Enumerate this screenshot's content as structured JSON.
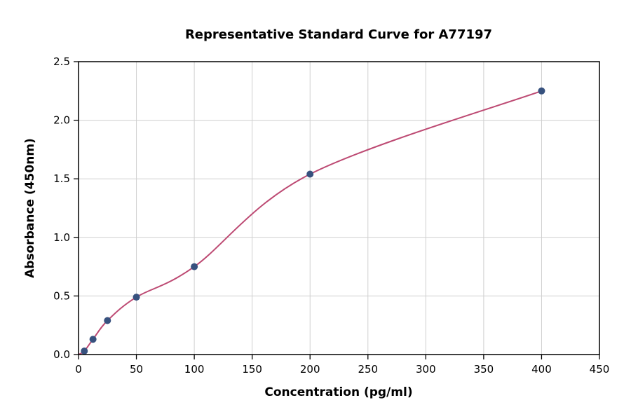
{
  "chart_data": {
    "type": "scatter",
    "title": "Representative Standard Curve for A77197",
    "xlabel": "Concentration (pg/ml)",
    "ylabel": "Absorbance (450nm)",
    "xlim": [
      0,
      450
    ],
    "ylim": [
      0,
      2.5
    ],
    "grid": true,
    "legend": "none",
    "xticks": {
      "values": [
        0,
        50,
        100,
        150,
        200,
        250,
        300,
        350,
        400,
        450
      ],
      "labels": [
        "0",
        "50",
        "100",
        "150",
        "200",
        "250",
        "300",
        "350",
        "400",
        "450"
      ]
    },
    "yticks": {
      "values": [
        0,
        0.5,
        1.0,
        1.5,
        2.0,
        2.5
      ],
      "labels": [
        "0.0",
        "0.5",
        "1.0",
        "1.5",
        "2.0",
        "2.5"
      ]
    },
    "points": [
      [
        5,
        0.03
      ],
      [
        12.5,
        0.13
      ],
      [
        25,
        0.29
      ],
      [
        50,
        0.49
      ],
      [
        100,
        0.75
      ],
      [
        200,
        1.54
      ],
      [
        400,
        2.25
      ]
    ],
    "fit_curve": {
      "description": "smooth saturating fit line through the standard points",
      "start": [
        0,
        0.0
      ],
      "end": [
        400,
        2.26
      ]
    },
    "colors": {
      "points": "#37517e",
      "curve": "#bd4a73",
      "grid": "#cfcfcf",
      "axis": "#000000",
      "background": "#ffffff"
    }
  }
}
